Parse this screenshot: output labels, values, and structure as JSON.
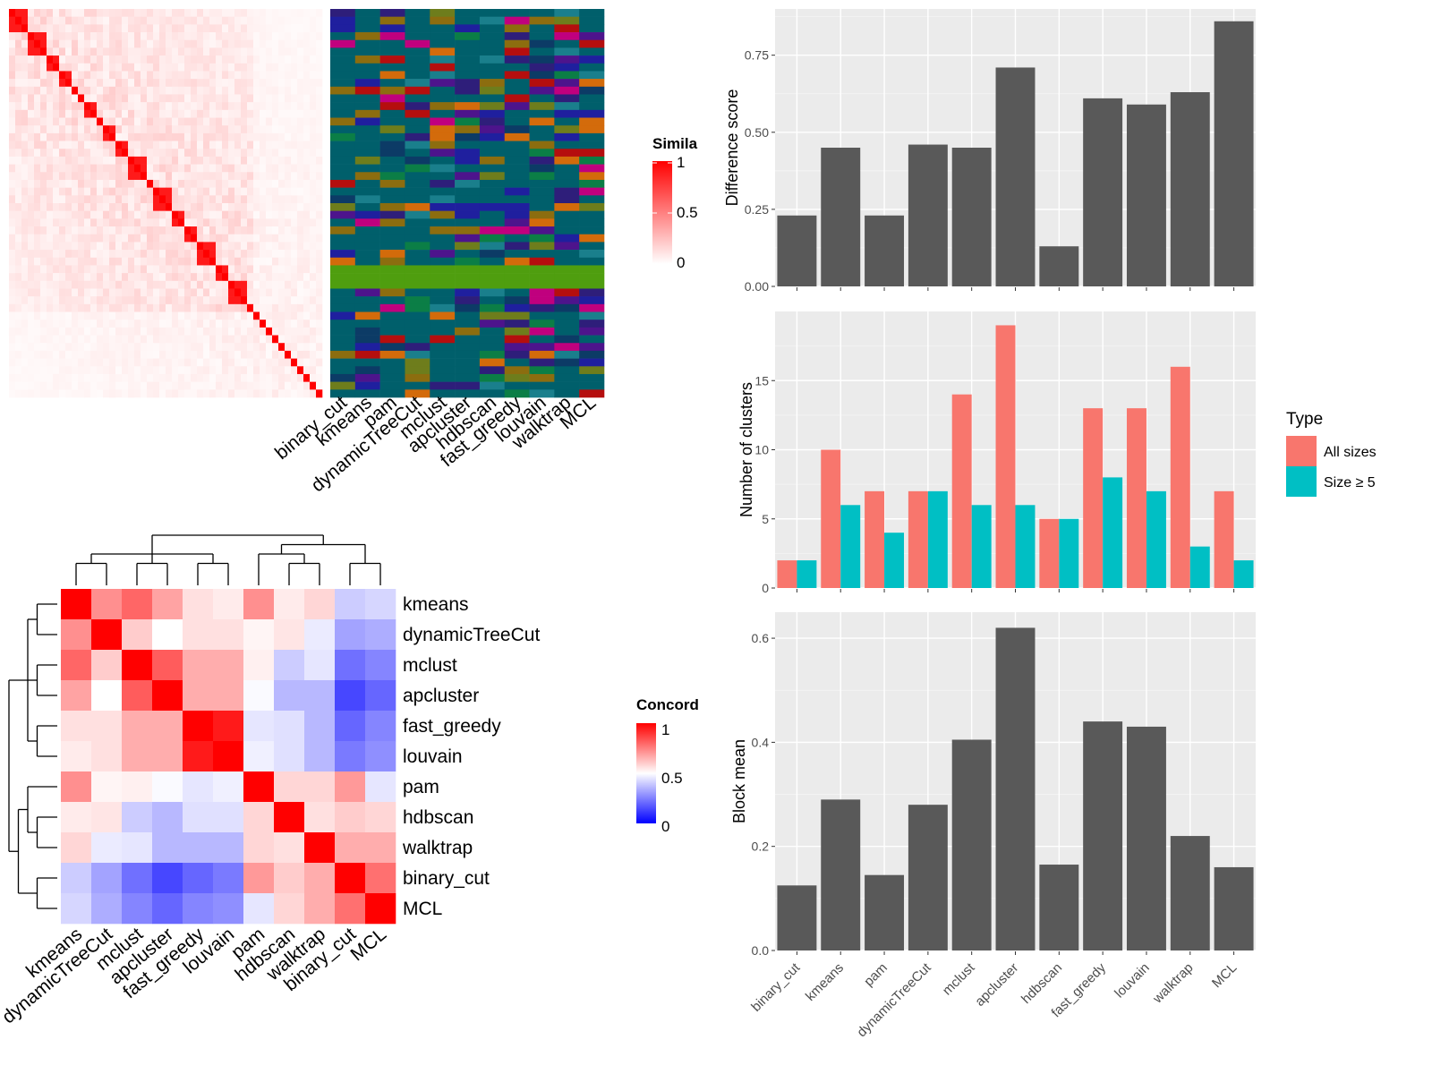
{
  "chart_data": [
    {
      "id": "similarity_heatmap",
      "type": "heatmap",
      "title": "",
      "n_cells": 50,
      "legend": {
        "title": "Simila",
        "ticks": [
          1,
          0.5,
          0
        ],
        "low_color": "#ffffff",
        "high_color": "#ff0000"
      },
      "cluster_columns": [
        "binary_cut",
        "kmeans",
        "pam",
        "dynamicTreeCut",
        "mclust",
        "apcluster",
        "hdbscan",
        "fast_greedy",
        "louvain",
        "walktrap",
        "MCL"
      ]
    },
    {
      "id": "concordance_heatmap",
      "type": "heatmap",
      "title": "",
      "legend": {
        "title": "Concord",
        "ticks": [
          1,
          0.5,
          0
        ],
        "colors": [
          "#0000ff",
          "#ffffff",
          "#ff0000"
        ]
      },
      "rows": [
        "kmeans",
        "dynamicTreeCut",
        "mclust",
        "apcluster",
        "fast_greedy",
        "louvain",
        "pam",
        "hdbscan",
        "walktrap",
        "binary_cut",
        "MCL"
      ],
      "columns": [
        "kmeans",
        "dynamicTreeCut",
        "mclust",
        "apcluster",
        "fast_greedy",
        "louvain",
        "pam",
        "hdbscan",
        "walktrap",
        "binary_cut",
        "MCL"
      ],
      "values": [
        [
          1.0,
          0.72,
          0.8,
          0.68,
          0.56,
          0.54,
          0.72,
          0.54,
          0.58,
          0.4,
          0.42
        ],
        [
          0.72,
          1.0,
          0.6,
          0.5,
          0.56,
          0.56,
          0.52,
          0.55,
          0.46,
          0.32,
          0.34
        ],
        [
          0.8,
          0.6,
          1.0,
          0.82,
          0.66,
          0.66,
          0.53,
          0.4,
          0.45,
          0.22,
          0.26
        ],
        [
          0.68,
          0.5,
          0.82,
          1.0,
          0.66,
          0.66,
          0.49,
          0.36,
          0.36,
          0.14,
          0.2
        ],
        [
          0.56,
          0.56,
          0.66,
          0.66,
          1.0,
          0.95,
          0.45,
          0.44,
          0.36,
          0.2,
          0.26
        ],
        [
          0.54,
          0.56,
          0.66,
          0.66,
          0.95,
          1.0,
          0.47,
          0.44,
          0.36,
          0.24,
          0.28
        ],
        [
          0.72,
          0.52,
          0.53,
          0.49,
          0.45,
          0.47,
          1.0,
          0.58,
          0.58,
          0.7,
          0.45
        ],
        [
          0.54,
          0.55,
          0.4,
          0.36,
          0.44,
          0.44,
          0.58,
          1.0,
          0.56,
          0.6,
          0.58
        ],
        [
          0.58,
          0.46,
          0.45,
          0.36,
          0.36,
          0.36,
          0.58,
          0.56,
          1.0,
          0.66,
          0.66
        ],
        [
          0.4,
          0.32,
          0.22,
          0.14,
          0.2,
          0.24,
          0.7,
          0.6,
          0.66,
          1.0,
          0.78
        ],
        [
          0.42,
          0.34,
          0.26,
          0.2,
          0.26,
          0.28,
          0.45,
          0.58,
          0.66,
          0.78,
          1.0
        ]
      ]
    },
    {
      "id": "difference_score",
      "type": "bar",
      "title": "",
      "xlabel": "",
      "ylabel": "Difference score",
      "categories": [
        "binary_cut",
        "kmeans",
        "pam",
        "dynamicTreeCut",
        "mclust",
        "apcluster",
        "hdbscan",
        "fast_greedy",
        "louvain",
        "walktrap",
        "MCL"
      ],
      "values": [
        0.23,
        0.45,
        0.23,
        0.46,
        0.45,
        0.71,
        0.13,
        0.61,
        0.59,
        0.63,
        0.86
      ],
      "ylim": [
        0,
        0.9
      ],
      "yticks": [
        0.0,
        0.25,
        0.5,
        0.75
      ],
      "ytick_labels": [
        "0.00",
        "0.25",
        "0.50",
        "0.75"
      ],
      "bar_color": "#595959",
      "grid": true
    },
    {
      "id": "number_of_clusters",
      "type": "bar",
      "title": "",
      "xlabel": "",
      "ylabel": "Number of clusters",
      "categories": [
        "binary_cut",
        "kmeans",
        "pam",
        "dynamicTreeCut",
        "mclust",
        "apcluster",
        "hdbscan",
        "fast_greedy",
        "louvain",
        "walktrap",
        "MCL"
      ],
      "series": [
        {
          "name": "All sizes",
          "color": "#f8766d",
          "values": [
            2,
            10,
            7,
            7,
            14,
            19,
            5,
            13,
            13,
            16,
            7
          ]
        },
        {
          "name": "Size ≥ 5",
          "color": "#00bfc4",
          "values": [
            2,
            6,
            4,
            7,
            6,
            6,
            5,
            8,
            7,
            3,
            2
          ]
        }
      ],
      "ylim": [
        0,
        20
      ],
      "yticks": [
        0,
        5,
        10,
        15
      ],
      "legend": {
        "title": "Type",
        "position": "right"
      },
      "grid": true
    },
    {
      "id": "block_mean",
      "type": "bar",
      "title": "",
      "xlabel": "",
      "ylabel": "Block mean",
      "categories": [
        "binary_cut",
        "kmeans",
        "pam",
        "dynamicTreeCut",
        "mclust",
        "apcluster",
        "hdbscan",
        "fast_greedy",
        "louvain",
        "walktrap",
        "MCL"
      ],
      "values": [
        0.125,
        0.29,
        0.145,
        0.28,
        0.405,
        0.62,
        0.165,
        0.44,
        0.43,
        0.22,
        0.16
      ],
      "ylim": [
        0,
        0.65
      ],
      "yticks": [
        0.0,
        0.2,
        0.4,
        0.6
      ],
      "ytick_labels": [
        "0.0",
        "0.2",
        "0.4",
        "0.6"
      ],
      "bar_color": "#595959",
      "grid": true
    }
  ]
}
